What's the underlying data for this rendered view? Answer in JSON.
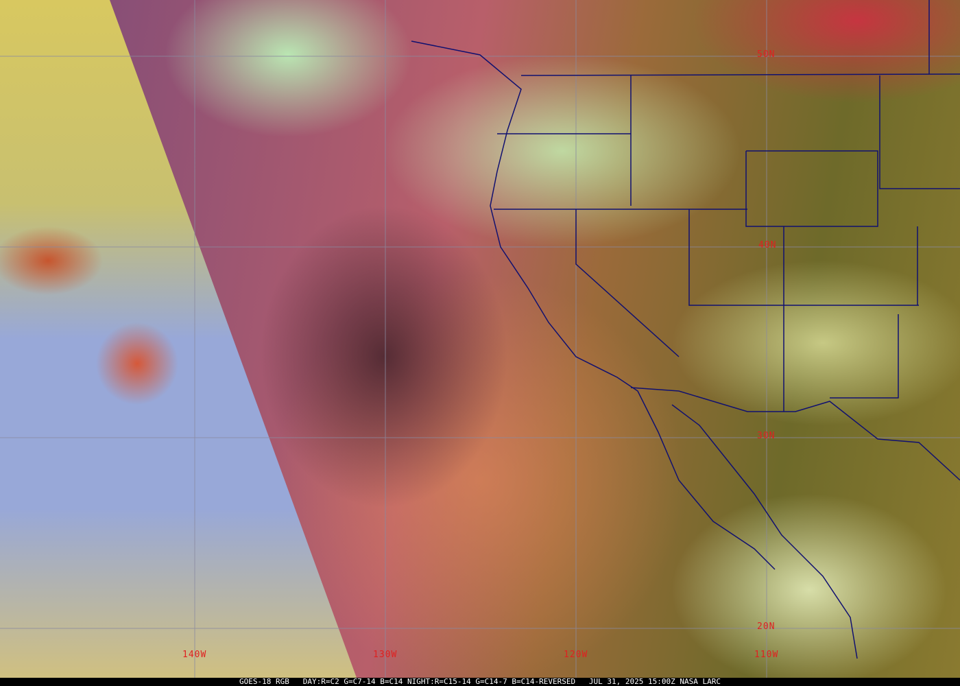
{
  "caption": "GOES-18 RGB   DAY:R=C2 G=C7-14 B=C14 NIGHT:R=C15-14 G=C14-7 B=C14-REVERSED   JUL 31, 2025 15:00Z NASA LARC",
  "latitude_labels": [
    "50N",
    "40N",
    "30N",
    "20N"
  ],
  "longitude_labels": [
    "140W",
    "130W",
    "120W",
    "110W"
  ],
  "colors": {
    "grid": "#8a8aa0",
    "borders": "#101070",
    "labels": "#e02020"
  }
}
